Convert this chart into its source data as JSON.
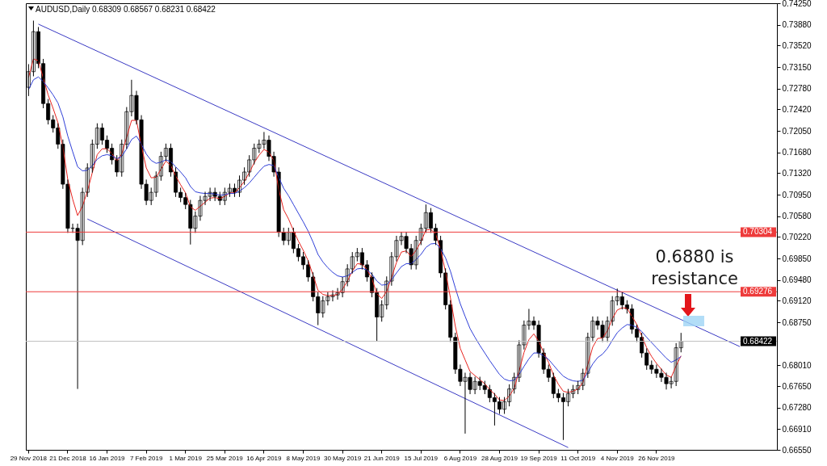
{
  "chart_data": {
    "type": "candlestick",
    "title": "AUDUSD,Daily  0.68309 0.68567 0.68231 0.68422",
    "categories": [
      "29 Nov 2018",
      null,
      null,
      null,
      null,
      null,
      null,
      null,
      "21 Dec 2018",
      null,
      null,
      null,
      null,
      null,
      null,
      null,
      "16 Jan 2019",
      null,
      null,
      null,
      null,
      null,
      null,
      null,
      "7 Feb 2019",
      null,
      null,
      null,
      null,
      null,
      null,
      null,
      "1 Mar 2019",
      null,
      null,
      null,
      null,
      null,
      null,
      null,
      "25 Mar 2019",
      null,
      null,
      null,
      null,
      null,
      null,
      null,
      "16 Apr 2019",
      null,
      null,
      null,
      null,
      null,
      null,
      null,
      "8 May 2019",
      null,
      null,
      null,
      null,
      null,
      null,
      null,
      "30 May 2019",
      null,
      null,
      null,
      null,
      null,
      null,
      null,
      "21 Jun 2019",
      null,
      null,
      null,
      null,
      null,
      null,
      null,
      "15 Jul 2019",
      null,
      null,
      null,
      null,
      null,
      null,
      null,
      "6 Aug 2019",
      null,
      null,
      null,
      null,
      null,
      null,
      null,
      "28 Aug 2019",
      null,
      null,
      null,
      null,
      null,
      null,
      null,
      "19 Sep 2019",
      null,
      null,
      null,
      null,
      null,
      null,
      null,
      "11 Oct 2019",
      null,
      null,
      null,
      null,
      null,
      null,
      null,
      "4 Nov 2019",
      null,
      null,
      null,
      null,
      null,
      null,
      null,
      "26 Nov 2019",
      null,
      null,
      null,
      null,
      null,
      null,
      null,
      null,
      null,
      null,
      null,
      null,
      null,
      null,
      null,
      null,
      null,
      null,
      null,
      null,
      null,
      null,
      null,
      null
    ],
    "ohlc": [
      [
        0.728,
        0.732,
        0.7265,
        0.7307
      ],
      [
        0.7307,
        0.7395,
        0.7299,
        0.7376
      ],
      [
        0.7376,
        0.7384,
        0.7313,
        0.7321
      ],
      [
        0.7321,
        0.7329,
        0.7244,
        0.7252
      ],
      [
        0.7252,
        0.726,
        0.7216,
        0.7224
      ],
      [
        0.7224,
        0.7232,
        0.7202,
        0.721
      ],
      [
        0.721,
        0.7218,
        0.7174,
        0.7182
      ],
      [
        0.7182,
        0.719,
        0.7105,
        0.7113
      ],
      [
        0.7113,
        0.7121,
        0.7029,
        0.7037
      ],
      [
        0.7037,
        0.7045,
        0.7029,
        0.7037
      ],
      [
        0.7037,
        0.7045,
        0.676,
        0.7016
      ],
      [
        0.7016,
        0.7107,
        0.7008,
        0.7099
      ],
      [
        0.7099,
        0.7149,
        0.7091,
        0.7141
      ],
      [
        0.7141,
        0.719,
        0.7133,
        0.7182
      ],
      [
        0.7182,
        0.7218,
        0.7174,
        0.721
      ],
      [
        0.721,
        0.7218,
        0.7181,
        0.7189
      ],
      [
        0.7189,
        0.7197,
        0.7167,
        0.7175
      ],
      [
        0.7175,
        0.7183,
        0.7147,
        0.7155
      ],
      [
        0.7155,
        0.7163,
        0.7126,
        0.7134
      ],
      [
        0.7134,
        0.719,
        0.7126,
        0.7182
      ],
      [
        0.7182,
        0.7246,
        0.7174,
        0.7238
      ],
      [
        0.7238,
        0.7293,
        0.723,
        0.7266
      ],
      [
        0.7266,
        0.7274,
        0.7216,
        0.7224
      ],
      [
        0.7224,
        0.7232,
        0.7105,
        0.7113
      ],
      [
        0.7113,
        0.7121,
        0.7077,
        0.7085
      ],
      [
        0.7085,
        0.7107,
        0.7077,
        0.7099
      ],
      [
        0.7099,
        0.7135,
        0.7091,
        0.7127
      ],
      [
        0.7127,
        0.7169,
        0.7119,
        0.7161
      ],
      [
        0.7161,
        0.7183,
        0.7153,
        0.7175
      ],
      [
        0.7175,
        0.7183,
        0.7126,
        0.7134
      ],
      [
        0.7134,
        0.7142,
        0.7091,
        0.7099
      ],
      [
        0.7099,
        0.7107,
        0.7082,
        0.709
      ],
      [
        0.709,
        0.7098,
        0.707,
        0.7078
      ],
      [
        0.7078,
        0.7086,
        0.7009,
        0.7037
      ],
      [
        0.7037,
        0.7066,
        0.7029,
        0.7058
      ],
      [
        0.7058,
        0.7093,
        0.705,
        0.7085
      ],
      [
        0.7085,
        0.71,
        0.7077,
        0.7092
      ],
      [
        0.7092,
        0.7107,
        0.7084,
        0.7099
      ],
      [
        0.7099,
        0.7107,
        0.7084,
        0.7092
      ],
      [
        0.7092,
        0.71,
        0.7077,
        0.7085
      ],
      [
        0.7085,
        0.7107,
        0.7077,
        0.7099
      ],
      [
        0.7099,
        0.7114,
        0.7091,
        0.7106
      ],
      [
        0.7106,
        0.7114,
        0.7091,
        0.7099
      ],
      [
        0.7099,
        0.7128,
        0.7091,
        0.712
      ],
      [
        0.712,
        0.7142,
        0.7112,
        0.7134
      ],
      [
        0.7134,
        0.7163,
        0.7126,
        0.7155
      ],
      [
        0.7155,
        0.7183,
        0.7147,
        0.7175
      ],
      [
        0.7175,
        0.719,
        0.7167,
        0.7182
      ],
      [
        0.7182,
        0.7203,
        0.7174,
        0.7189
      ],
      [
        0.7189,
        0.7197,
        0.7153,
        0.7161
      ],
      [
        0.7161,
        0.7169,
        0.7126,
        0.7134
      ],
      [
        0.7134,
        0.7142,
        0.7022,
        0.703
      ],
      [
        0.703,
        0.7038,
        0.7008,
        0.7016
      ],
      [
        0.7016,
        0.7038,
        0.7008,
        0.703
      ],
      [
        0.703,
        0.7038,
        0.6994,
        0.7002
      ],
      [
        0.7002,
        0.701,
        0.698,
        0.6988
      ],
      [
        0.6988,
        0.6996,
        0.6966,
        0.6974
      ],
      [
        0.6974,
        0.6982,
        0.6945,
        0.6953
      ],
      [
        0.6953,
        0.6961,
        0.6911,
        0.6919
      ],
      [
        0.6919,
        0.6927,
        0.687,
        0.6891
      ],
      [
        0.6891,
        0.692,
        0.6883,
        0.6912
      ],
      [
        0.6912,
        0.6927,
        0.6904,
        0.6919
      ],
      [
        0.6919,
        0.693,
        0.6911,
        0.6922
      ],
      [
        0.6922,
        0.6934,
        0.6914,
        0.6926
      ],
      [
        0.6926,
        0.6953,
        0.6918,
        0.6945
      ],
      [
        0.6945,
        0.6975,
        0.6937,
        0.6967
      ],
      [
        0.6967,
        0.6996,
        0.6959,
        0.6988
      ],
      [
        0.6988,
        0.7003,
        0.698,
        0.6995
      ],
      [
        0.6995,
        0.7003,
        0.6966,
        0.6974
      ],
      [
        0.6974,
        0.6982,
        0.6945,
        0.6953
      ],
      [
        0.6953,
        0.6961,
        0.6918,
        0.6926
      ],
      [
        0.6926,
        0.6934,
        0.6842,
        0.6884
      ],
      [
        0.6884,
        0.6913,
        0.6876,
        0.6905
      ],
      [
        0.6905,
        0.6954,
        0.6897,
        0.6946
      ],
      [
        0.6946,
        0.6996,
        0.6938,
        0.6988
      ],
      [
        0.6988,
        0.7024,
        0.698,
        0.7016
      ],
      [
        0.7016,
        0.7031,
        0.7008,
        0.7023
      ],
      [
        0.7023,
        0.7031,
        0.6994,
        0.7002
      ],
      [
        0.7002,
        0.701,
        0.6966,
        0.6974
      ],
      [
        0.6974,
        0.7024,
        0.6966,
        0.7016
      ],
      [
        0.7016,
        0.7045,
        0.7008,
        0.7037
      ],
      [
        0.7037,
        0.7078,
        0.7029,
        0.7064
      ],
      [
        0.7064,
        0.7072,
        0.7029,
        0.7037
      ],
      [
        0.7037,
        0.7045,
        0.7008,
        0.7016
      ],
      [
        0.7016,
        0.7024,
        0.6952,
        0.696
      ],
      [
        0.696,
        0.6968,
        0.6897,
        0.6905
      ],
      [
        0.6905,
        0.6913,
        0.6841,
        0.6849
      ],
      [
        0.6849,
        0.6857,
        0.6786,
        0.6794
      ],
      [
        0.6794,
        0.6802,
        0.6765,
        0.6773
      ],
      [
        0.6773,
        0.6788,
        0.6683,
        0.678
      ],
      [
        0.678,
        0.6788,
        0.6751,
        0.6759
      ],
      [
        0.6759,
        0.6781,
        0.6751,
        0.6773
      ],
      [
        0.6773,
        0.6781,
        0.6758,
        0.6766
      ],
      [
        0.6766,
        0.6774,
        0.6751,
        0.6759
      ],
      [
        0.6759,
        0.6767,
        0.6737,
        0.6745
      ],
      [
        0.6745,
        0.6753,
        0.6697,
        0.6738
      ],
      [
        0.6738,
        0.6746,
        0.6717,
        0.6725
      ],
      [
        0.6725,
        0.6746,
        0.6717,
        0.6738
      ],
      [
        0.6738,
        0.6768,
        0.673,
        0.676
      ],
      [
        0.676,
        0.6788,
        0.6752,
        0.678
      ],
      [
        0.678,
        0.6844,
        0.6772,
        0.6836
      ],
      [
        0.6836,
        0.6878,
        0.6828,
        0.687
      ],
      [
        0.687,
        0.6898,
        0.6862,
        0.6877
      ],
      [
        0.6877,
        0.6885,
        0.6862,
        0.687
      ],
      [
        0.687,
        0.6878,
        0.6814,
        0.6822
      ],
      [
        0.6822,
        0.683,
        0.6786,
        0.6794
      ],
      [
        0.6794,
        0.6802,
        0.6772,
        0.678
      ],
      [
        0.678,
        0.6788,
        0.6744,
        0.6752
      ],
      [
        0.6752,
        0.676,
        0.6737,
        0.6745
      ],
      [
        0.6745,
        0.6753,
        0.6672,
        0.6738
      ],
      [
        0.6738,
        0.676,
        0.673,
        0.6752
      ],
      [
        0.6752,
        0.6767,
        0.6744,
        0.6759
      ],
      [
        0.6759,
        0.6774,
        0.6751,
        0.6766
      ],
      [
        0.6766,
        0.6795,
        0.6758,
        0.6787
      ],
      [
        0.6787,
        0.6857,
        0.6779,
        0.6849
      ],
      [
        0.6849,
        0.6885,
        0.6841,
        0.6877
      ],
      [
        0.6877,
        0.6885,
        0.6862,
        0.687
      ],
      [
        0.687,
        0.6878,
        0.6841,
        0.6849
      ],
      [
        0.6849,
        0.6885,
        0.6841,
        0.6877
      ],
      [
        0.6877,
        0.692,
        0.6869,
        0.6912
      ],
      [
        0.6912,
        0.6933,
        0.6904,
        0.6919
      ],
      [
        0.6919,
        0.6927,
        0.6897,
        0.6905
      ],
      [
        0.6905,
        0.6913,
        0.689,
        0.6898
      ],
      [
        0.6898,
        0.6906,
        0.6855,
        0.6863
      ],
      [
        0.6863,
        0.6871,
        0.6841,
        0.6849
      ],
      [
        0.6849,
        0.6857,
        0.6814,
        0.6822
      ],
      [
        0.6822,
        0.683,
        0.6793,
        0.6801
      ],
      [
        0.6801,
        0.6809,
        0.6786,
        0.6794
      ],
      [
        0.6794,
        0.6802,
        0.6779,
        0.6787
      ],
      [
        0.6787,
        0.6795,
        0.6772,
        0.678
      ],
      [
        0.678,
        0.6788,
        0.6759,
        0.6769
      ],
      [
        0.6769,
        0.6781,
        0.6761,
        0.6773
      ],
      [
        0.6773,
        0.6839,
        0.6765,
        0.6831
      ],
      [
        0.68309,
        0.68567,
        0.68231,
        0.68422
      ],
      null,
      null,
      null,
      null,
      null,
      null,
      null,
      null,
      null,
      null,
      null,
      null,
      null,
      null,
      null,
      null,
      null,
      null,
      null
    ],
    "series": [
      {
        "type": "line",
        "color": "#e8231e",
        "values": [
          0.7297,
          0.7329,
          0.7326,
          0.7296,
          0.7267,
          0.7244,
          0.7219,
          0.7177,
          0.7121,
          0.7087,
          0.7059,
          0.7075,
          0.7101,
          0.7133,
          0.7164,
          0.7174,
          0.7174,
          0.7166,
          0.7153,
          0.7165,
          0.7194,
          0.7223,
          0.7223,
          0.7179,
          0.7141,
          0.7124,
          0.7125,
          0.7139,
          0.7153,
          0.7145,
          0.7127,
          0.7112,
          0.7098,
          0.7074,
          0.7068,
          0.7075,
          0.7082,
          0.7089,
          0.709,
          0.7088,
          0.7092,
          0.7098,
          0.7098,
          0.7107,
          0.7118,
          0.7133,
          0.715,
          0.7163,
          0.7173,
          0.7168,
          0.7154,
          0.7104,
          0.7069,
          0.7053,
          0.7033,
          0.7015,
          0.6999,
          0.6981,
          0.6956,
          0.693,
          0.6923,
          0.6921,
          0.6921,
          0.6923,
          0.6932,
          0.6946,
          0.6963,
          0.6976,
          0.6975,
          0.6966,
          0.695,
          0.6924,
          0.6916,
          0.6928,
          0.6952,
          0.6978,
          0.6996,
          0.6998,
          0.6988,
          0.6999,
          0.7014,
          0.7034,
          0.7035,
          0.7027,
          0.7,
          0.6962,
          0.6917,
          0.6868,
          0.683,
          0.681,
          0.679,
          0.6783,
          0.6776,
          0.6769,
          0.6759,
          0.6751,
          0.6741,
          0.674,
          0.6748,
          0.6761,
          0.6791,
          0.6823,
          0.6845,
          0.6855,
          0.6842,
          0.6823,
          0.6806,
          0.6784,
          0.6768,
          0.6756,
          0.6754,
          0.6756,
          0.676,
          0.6771,
          0.6802,
          0.6832,
          0.6847,
          0.6848,
          0.686,
          0.6881,
          0.6896,
          0.69,
          0.6899,
          0.6885,
          0.6871,
          0.6851,
          0.6831,
          0.6816,
          0.6804,
          0.6794,
          0.6784,
          0.678,
          0.68,
          0.6817,
          null,
          null,
          null,
          null,
          null,
          null,
          null,
          null,
          null,
          null,
          null,
          null,
          null,
          null,
          null,
          null,
          null,
          null,
          null
        ]
      },
      {
        "type": "line",
        "color": "#2f3fd8",
        "values": [
          0.7276,
          0.7293,
          0.7298,
          0.729,
          0.7279,
          0.7267,
          0.7253,
          0.7229,
          0.7196,
          0.7169,
          0.7143,
          0.7136,
          0.7137,
          0.7145,
          0.7156,
          0.7162,
          0.7164,
          0.7162,
          0.7157,
          0.7161,
          0.7174,
          0.719,
          0.7196,
          0.7182,
          0.7165,
          0.7154,
          0.7149,
          0.7151,
          0.7155,
          0.7152,
          0.7143,
          0.7134,
          0.7124,
          0.7109,
          0.71,
          0.7098,
          0.7097,
          0.7097,
          0.7096,
          0.7094,
          0.7095,
          0.7097,
          0.7097,
          0.7101,
          0.7107,
          0.7115,
          0.7125,
          0.7135,
          0.7144,
          0.7147,
          0.7145,
          0.7125,
          0.7106,
          0.7093,
          0.7078,
          0.7063,
          0.7048,
          0.7032,
          0.7013,
          0.6992,
          0.6979,
          0.6969,
          0.6961,
          0.6955,
          0.6953,
          0.6955,
          0.6961,
          0.6967,
          0.6968,
          0.6965,
          0.6958,
          0.6946,
          0.6939,
          0.694,
          0.6948,
          0.696,
          0.6971,
          0.6976,
          0.6976,
          0.6983,
          0.6992,
          0.7004,
          0.701,
          0.7011,
          0.7002,
          0.6986,
          0.6963,
          0.6934,
          0.6907,
          0.6885,
          0.6864,
          0.6849,
          0.6835,
          0.6822,
          0.6809,
          0.6797,
          0.6785,
          0.6777,
          0.6774,
          0.6775,
          0.6785,
          0.6799,
          0.6812,
          0.6822,
          0.6822,
          0.6817,
          0.6811,
          0.6801,
          0.6791,
          0.6782,
          0.6777,
          0.6774,
          0.6773,
          0.6775,
          0.6788,
          0.6803,
          0.6814,
          0.682,
          0.683,
          0.6844,
          0.6857,
          0.6865,
          0.6871,
          0.687,
          0.6866,
          0.6859,
          0.6849,
          0.684,
          0.6831,
          0.6822,
          0.6813,
          0.6806,
          0.681,
          0.6816,
          null,
          null,
          null,
          null,
          null,
          null,
          null,
          null,
          null,
          null,
          null,
          null,
          null,
          null,
          null,
          null,
          null,
          null,
          null
        ]
      },
      {
        "type": "line",
        "color": "#3a3ac4",
        "values": [
          null,
          null,
          0.7389,
          null,
          null,
          null,
          null,
          null,
          null,
          null,
          null,
          null,
          null,
          null,
          null,
          null,
          null,
          null,
          null,
          null,
          null,
          null,
          null,
          null,
          null,
          null,
          null,
          null,
          null,
          null,
          null,
          null,
          null,
          null,
          null,
          null,
          null,
          null,
          null,
          null,
          null,
          null,
          null,
          null,
          null,
          null,
          null,
          null,
          null,
          null,
          null,
          null,
          null,
          null,
          null,
          null,
          null,
          null,
          null,
          null,
          null,
          null,
          null,
          null,
          null,
          null,
          null,
          null,
          null,
          null,
          null,
          null,
          null,
          null,
          null,
          null,
          null,
          null,
          null,
          null,
          null,
          null,
          null,
          null,
          null,
          null,
          null,
          null,
          null,
          null,
          null,
          null,
          null,
          null,
          null,
          null,
          null,
          null,
          null,
          null,
          null,
          null,
          null,
          null,
          null,
          null,
          null,
          null,
          null,
          null,
          null,
          null,
          null,
          null,
          null,
          null,
          null,
          null,
          null,
          null,
          null,
          null,
          null,
          null,
          null,
          null,
          null,
          null,
          null,
          null,
          null,
          null,
          null,
          null,
          null,
          null,
          null,
          null,
          null,
          null,
          null,
          null,
          null,
          null,
          null,
          0.6833,
          null,
          null,
          null,
          null,
          null,
          null,
          null
        ]
      },
      {
        "type": "line",
        "color": "#3a3ac4",
        "values": [
          null,
          null,
          null,
          null,
          null,
          null,
          null,
          null,
          null,
          null,
          null,
          null,
          0.7053,
          null,
          null,
          null,
          null,
          null,
          null,
          null,
          null,
          null,
          null,
          null,
          null,
          null,
          null,
          null,
          null,
          null,
          null,
          null,
          null,
          null,
          null,
          null,
          null,
          null,
          null,
          null,
          null,
          null,
          null,
          null,
          null,
          null,
          null,
          null,
          null,
          null,
          null,
          null,
          null,
          null,
          null,
          null,
          null,
          null,
          null,
          null,
          null,
          null,
          null,
          null,
          null,
          null,
          null,
          null,
          null,
          null,
          null,
          null,
          null,
          null,
          null,
          null,
          null,
          null,
          null,
          null,
          null,
          null,
          null,
          null,
          null,
          null,
          null,
          null,
          null,
          null,
          null,
          null,
          null,
          null,
          null,
          null,
          null,
          null,
          null,
          null,
          null,
          null,
          null,
          null,
          null,
          null,
          null,
          null,
          null,
          null,
          0.6659,
          null,
          null,
          null,
          null,
          null,
          null,
          null,
          null,
          null,
          null,
          null,
          null,
          null,
          null,
          null,
          null,
          null,
          null,
          null,
          null,
          null,
          null,
          null,
          null,
          null,
          null,
          null,
          null,
          null,
          null,
          null,
          null,
          null,
          null,
          null,
          null,
          null,
          null,
          null,
          null,
          null,
          null
        ]
      }
    ],
    "ylim": [
      0.6655,
      0.7425
    ],
    "yticks": [
      {
        "value": 0.7425,
        "label": "0.74250"
      },
      {
        "value": 0.7388,
        "label": "0.73880"
      },
      {
        "value": 0.7352,
        "label": "0.73520"
      },
      {
        "value": 0.7315,
        "label": "0.73150"
      },
      {
        "value": 0.7278,
        "label": "0.72780"
      },
      {
        "value": 0.7242,
        "label": "0.72420"
      },
      {
        "value": 0.7205,
        "label": "0.72050"
      },
      {
        "value": 0.7168,
        "label": "0.71680"
      },
      {
        "value": 0.7132,
        "label": "0.71320"
      },
      {
        "value": 0.7095,
        "label": "0.70950"
      },
      {
        "value": 0.7058,
        "label": "0.70580"
      },
      {
        "value": 0.7022,
        "label": "0.70220"
      },
      {
        "value": 0.6985,
        "label": "0.69850"
      },
      {
        "value": 0.6948,
        "label": "0.69480"
      },
      {
        "value": 0.6912,
        "label": "0.69120"
      },
      {
        "value": 0.6875,
        "label": "0.68750"
      },
      {
        "value": 0.6801,
        "label": "0.68010"
      },
      {
        "value": 0.6765,
        "label": "0.67650"
      },
      {
        "value": 0.6728,
        "label": "0.67280"
      },
      {
        "value": 0.6691,
        "label": "0.66910"
      },
      {
        "value": 0.6655,
        "label": "0.66550"
      }
    ],
    "ref_lines": [
      {
        "axis": "y",
        "value": 0.70304,
        "label": "0.70304",
        "color": "#ee3b3b",
        "line_style": "solid"
      },
      {
        "axis": "y",
        "value": 0.69276,
        "label": "0.69276",
        "color": "#ee3b3b",
        "line_style": "solid"
      },
      {
        "axis": "y",
        "value": 0.68422,
        "label": "0.68422",
        "color": "#c0c0c0",
        "line_style": "solid"
      }
    ],
    "annotations": [
      "0.6880 is resistance"
    ]
  }
}
